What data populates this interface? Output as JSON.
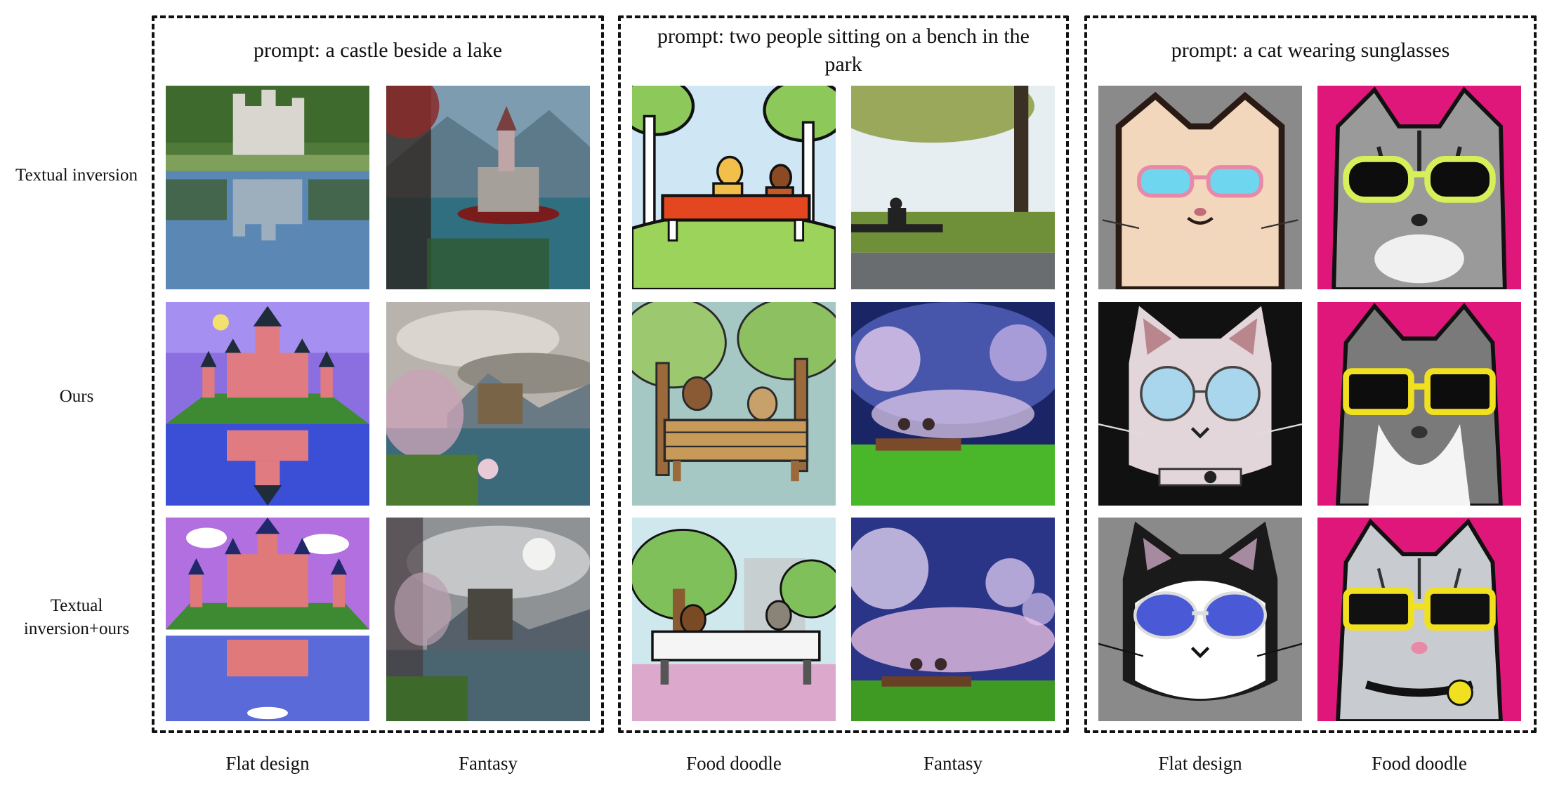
{
  "row_labels": {
    "textual_inversion": "Textual inversion",
    "ours": "Ours",
    "textual_inversion_plus_ours": "Textual inversion+ours"
  },
  "panels": [
    {
      "prompt": "prompt: a castle beside a lake",
      "columns": [
        "Flat design",
        "Fantasy"
      ]
    },
    {
      "prompt": "prompt: two people sitting on a bench in the park",
      "columns": [
        "Food doodle",
        "Fantasy"
      ]
    },
    {
      "prompt": "prompt: a cat wearing sunglasses",
      "columns": [
        "Flat design",
        "Food doodle"
      ]
    }
  ],
  "colors": {
    "frame": "#111111",
    "castle_sky_flat": "#8b6fe0",
    "castle_water_flat": "#3a4fd6",
    "cat_background_pink": "#e0177a"
  }
}
